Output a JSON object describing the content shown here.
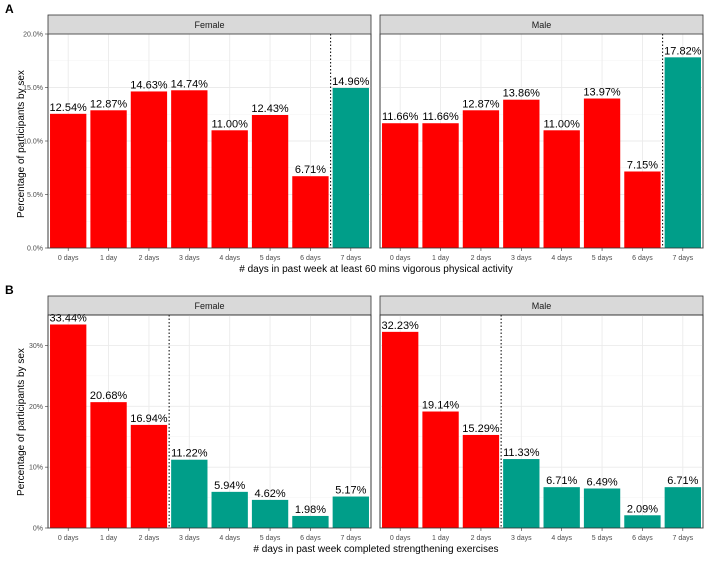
{
  "colors": {
    "low": "#ff0000",
    "high": "#009e89"
  },
  "chart_data": [
    {
      "tag": "A",
      "type": "bar",
      "xlabel": "# days in past week at least 60 mins vigorous physical activity",
      "ylabel": "Percentage of participants by sex",
      "ylim": [
        0,
        20
      ],
      "yticks": [
        0,
        5,
        10,
        15,
        20
      ],
      "ytick_labels": [
        "0.0%",
        "5.0%",
        "10.0%",
        "15.0%",
        "20.0%"
      ],
      "categories": [
        "0 days",
        "1 day",
        "2 days",
        "3 days",
        "4 days",
        "5 days",
        "6 days",
        "7 days"
      ],
      "threshold_after_index": 6,
      "facets": [
        {
          "name": "Female",
          "values": [
            12.54,
            12.87,
            14.63,
            14.74,
            11.0,
            12.43,
            6.71,
            14.96
          ],
          "labels": [
            "12.54%",
            "12.87%",
            "14.63%",
            "14.74%",
            "11.00%",
            "12.43%",
            "6.71%",
            "14.96%"
          ]
        },
        {
          "name": "Male",
          "values": [
            11.66,
            11.66,
            12.87,
            13.86,
            11.0,
            13.97,
            7.15,
            17.82
          ],
          "labels": [
            "11.66%",
            "11.66%",
            "12.87%",
            "13.86%",
            "11.00%",
            "13.97%",
            "7.15%",
            "17.82%"
          ]
        }
      ]
    },
    {
      "tag": "B",
      "type": "bar",
      "xlabel": "# days in past week completed strengthening exercises",
      "ylabel": "Percentage of participants by sex",
      "ylim": [
        0,
        35
      ],
      "yticks": [
        0,
        10,
        20,
        30
      ],
      "ytick_labels": [
        "0%",
        "10%",
        "20%",
        "30%"
      ],
      "categories": [
        "0 days",
        "1 day",
        "2 days",
        "3 days",
        "4 days",
        "5 days",
        "6 days",
        "7 days"
      ],
      "threshold_after_index": 2,
      "facets": [
        {
          "name": "Female",
          "values": [
            33.44,
            20.68,
            16.94,
            11.22,
            5.94,
            4.62,
            1.98,
            5.17
          ],
          "labels": [
            "33.44%",
            "20.68%",
            "16.94%",
            "11.22%",
            "5.94%",
            "4.62%",
            "1.98%",
            "5.17%"
          ]
        },
        {
          "name": "Male",
          "values": [
            32.23,
            19.14,
            15.29,
            11.33,
            6.71,
            6.49,
            2.09,
            6.71
          ],
          "labels": [
            "32.23%",
            "19.14%",
            "15.29%",
            "11.33%",
            "6.71%",
            "6.49%",
            "2.09%",
            "6.71%"
          ]
        }
      ]
    }
  ]
}
